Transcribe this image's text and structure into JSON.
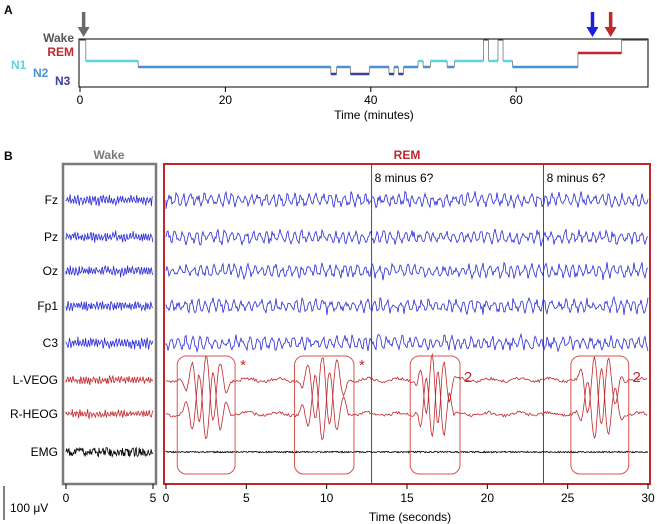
{
  "colors": {
    "wake": "#555555",
    "rem": "#c0282d",
    "n1": "#5fd3e0",
    "n2": "#4a8fd4",
    "n3": "#3a3fa0",
    "eeg": "#2b2bd6",
    "eog": "#c0282d",
    "emg": "#000000",
    "arrow_gray": "#6a6a6a",
    "arrow_blue": "#1d1de8",
    "arrow_red": "#c0282d"
  },
  "panel_a": {
    "letter": "A",
    "stage_labels": {
      "wake": "Wake",
      "rem": "REM",
      "n1": "N1",
      "n2": "N2",
      "n3": "N3"
    },
    "xlabel": "Time (minutes)",
    "xticks": [
      "0",
      "20",
      "40",
      "60"
    ],
    "xtick_values": [
      0,
      20,
      40,
      60
    ],
    "xlim": [
      0,
      78
    ],
    "hypnogram": [
      {
        "t0": 0,
        "t1": 0.8,
        "stage": "wake"
      },
      {
        "t0": 0.8,
        "t1": 8,
        "stage": "n1"
      },
      {
        "t0": 8,
        "t1": 34.5,
        "stage": "n2"
      },
      {
        "t0": 34.5,
        "t1": 35.3,
        "stage": "n3"
      },
      {
        "t0": 35.3,
        "t1": 37.2,
        "stage": "n2"
      },
      {
        "t0": 37.2,
        "t1": 39.8,
        "stage": "n3"
      },
      {
        "t0": 39.8,
        "t1": 42.5,
        "stage": "n2"
      },
      {
        "t0": 42.5,
        "t1": 43.2,
        "stage": "n3"
      },
      {
        "t0": 43.2,
        "t1": 43.8,
        "stage": "n2"
      },
      {
        "t0": 43.8,
        "t1": 44.5,
        "stage": "n3"
      },
      {
        "t0": 44.5,
        "t1": 46.5,
        "stage": "n2"
      },
      {
        "t0": 46.5,
        "t1": 47.2,
        "stage": "n1"
      },
      {
        "t0": 47.2,
        "t1": 48.2,
        "stage": "n2"
      },
      {
        "t0": 48.2,
        "t1": 50.5,
        "stage": "n1"
      },
      {
        "t0": 50.5,
        "t1": 51.5,
        "stage": "n2"
      },
      {
        "t0": 51.5,
        "t1": 55.5,
        "stage": "n1"
      },
      {
        "t0": 55.5,
        "t1": 56.2,
        "stage": "wake"
      },
      {
        "t0": 56.2,
        "t1": 57.5,
        "stage": "n1"
      },
      {
        "t0": 57.5,
        "t1": 58.2,
        "stage": "wake"
      },
      {
        "t0": 58.2,
        "t1": 59.5,
        "stage": "n1"
      },
      {
        "t0": 59.5,
        "t1": 68.5,
        "stage": "n2"
      },
      {
        "t0": 68.5,
        "t1": 74.5,
        "stage": "rem"
      },
      {
        "t0": 74.5,
        "t1": 78,
        "stage": "wake"
      }
    ],
    "arrows": [
      {
        "t": 0.5,
        "color_key": "arrow_gray"
      },
      {
        "t": 70.5,
        "color_key": "arrow_blue"
      },
      {
        "t": 73.0,
        "color_key": "arrow_red"
      }
    ]
  },
  "panel_b": {
    "letter": "B",
    "wake_title": "Wake",
    "rem_title": "REM",
    "channels": [
      "Fz",
      "Pz",
      "Oz",
      "Fp1",
      "C3",
      "L-VEOG",
      "R-HEOG",
      "EMG"
    ],
    "channel_types": [
      "eeg",
      "eeg",
      "eeg",
      "eeg",
      "eeg",
      "eog",
      "eog",
      "emg"
    ],
    "wake_xticks": [
      "0",
      "5"
    ],
    "wake_xtick_values": [
      0,
      5
    ],
    "wake_xlim": [
      0,
      5
    ],
    "rem_xticks": [
      "0",
      "5",
      "10",
      "15",
      "20",
      "25",
      "30"
    ],
    "rem_xtick_values": [
      0,
      5,
      10,
      15,
      20,
      25,
      30
    ],
    "rem_xlim": [
      0,
      30
    ],
    "xlabel": "Time (seconds)",
    "scale_bar": "100 μV",
    "markers": [
      {
        "t": 12.8,
        "label": "8 minus 6?"
      },
      {
        "t": 23.5,
        "label": "8 minus 6?"
      }
    ],
    "eye_movement_windows": [
      {
        "t0": 0.7,
        "t1": 4.3,
        "tag": "*"
      },
      {
        "t0": 8.0,
        "t1": 11.7,
        "tag": "*"
      },
      {
        "t0": 15.2,
        "t1": 18.3,
        "tag": "2"
      },
      {
        "t0": 25.2,
        "t1": 28.8,
        "tag": "2"
      }
    ]
  }
}
